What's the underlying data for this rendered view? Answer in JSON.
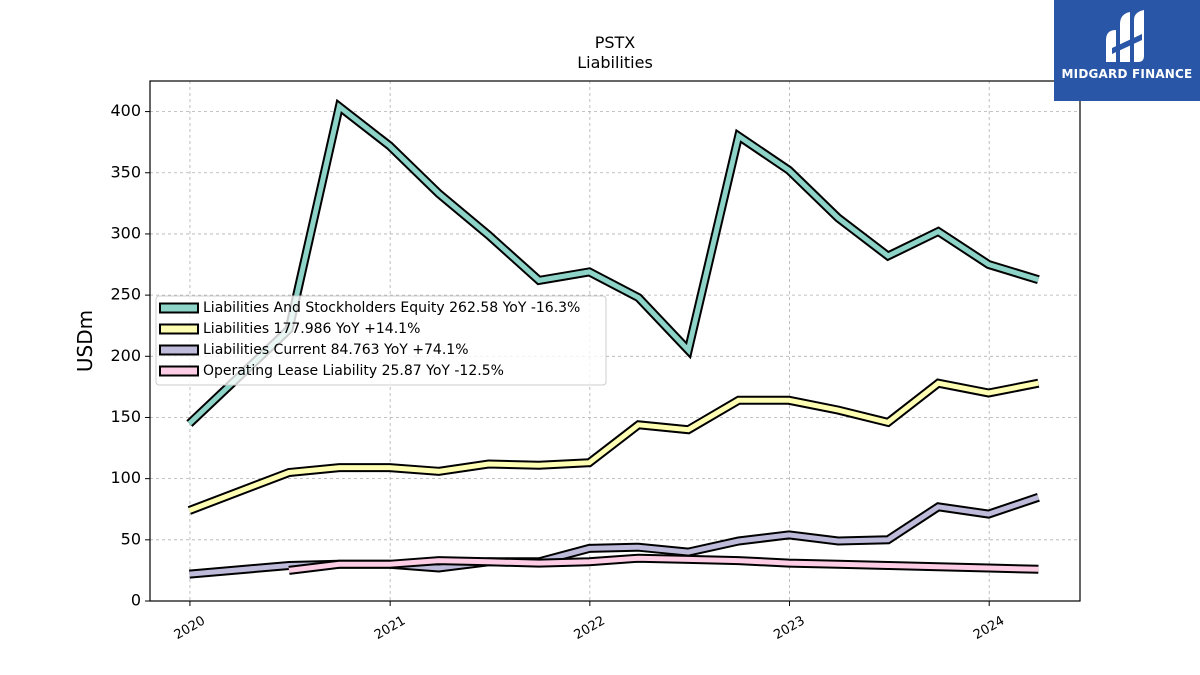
{
  "logo": {
    "text": "MIDGARD FINANCE",
    "background": "#2a56a8"
  },
  "chart_data": {
    "type": "line",
    "title": "PSTX",
    "subtitle": "Liabilities",
    "ylabel": "USDm",
    "xlabel": "",
    "ylim": [
      0,
      425
    ],
    "xlim": [
      "2019-10-20",
      "2024-06-15"
    ],
    "grid": true,
    "legend_position": "center-left",
    "yticks": [
      0,
      50,
      100,
      150,
      200,
      250,
      300,
      350,
      400
    ],
    "xticks": [
      {
        "label": "2020",
        "date": "2020-01-01"
      },
      {
        "label": "2021",
        "date": "2021-01-01"
      },
      {
        "label": "2022",
        "date": "2022-01-01"
      },
      {
        "label": "2023",
        "date": "2023-01-01"
      },
      {
        "label": "2024",
        "date": "2024-01-01"
      }
    ],
    "series": [
      {
        "name": "Liabilities And Stockholders Equity",
        "legend": "Liabilities And Stockholders Equity  262.58 YoY -16.3%",
        "color": "#8dd3c7",
        "points": [
          [
            "2019-12-31",
            145
          ],
          [
            "2020-06-30",
            222
          ],
          [
            "2020-09-30",
            404
          ],
          [
            "2020-12-31",
            372
          ],
          [
            "2021-03-31",
            333
          ],
          [
            "2021-06-30",
            299
          ],
          [
            "2021-09-30",
            262
          ],
          [
            "2021-12-31",
            269
          ],
          [
            "2022-03-31",
            248
          ],
          [
            "2022-06-30",
            205
          ],
          [
            "2022-09-30",
            380
          ],
          [
            "2022-12-31",
            352
          ],
          [
            "2023-03-31",
            313
          ],
          [
            "2023-06-30",
            282
          ],
          [
            "2023-09-30",
            302
          ],
          [
            "2023-12-31",
            275
          ],
          [
            "2024-03-31",
            262.58
          ]
        ]
      },
      {
        "name": "Liabilities",
        "legend": "Liabilities  177.986 YoY +14.1%",
        "color": "#ffffb3",
        "points": [
          [
            "2019-12-31",
            74
          ],
          [
            "2020-06-30",
            105
          ],
          [
            "2020-09-30",
            109
          ],
          [
            "2020-12-31",
            109
          ],
          [
            "2021-03-31",
            106
          ],
          [
            "2021-06-30",
            112
          ],
          [
            "2021-09-30",
            111
          ],
          [
            "2021-12-31",
            113
          ],
          [
            "2022-03-31",
            144
          ],
          [
            "2022-06-30",
            140
          ],
          [
            "2022-09-30",
            164
          ],
          [
            "2022-12-31",
            164
          ],
          [
            "2023-03-31",
            156
          ],
          [
            "2023-06-30",
            146
          ],
          [
            "2023-09-30",
            178
          ],
          [
            "2023-12-31",
            170
          ],
          [
            "2024-03-31",
            177.986
          ]
        ]
      },
      {
        "name": "Liabilities Current",
        "legend": "Liabilities Current  84.763 YoY +74.1%",
        "color": "#bebada",
        "points": [
          [
            "2019-12-31",
            22
          ],
          [
            "2020-06-30",
            29
          ],
          [
            "2020-09-30",
            30
          ],
          [
            "2020-12-31",
            30
          ],
          [
            "2021-03-31",
            27
          ],
          [
            "2021-06-30",
            32
          ],
          [
            "2021-09-30",
            32
          ],
          [
            "2021-12-31",
            43
          ],
          [
            "2022-03-31",
            44
          ],
          [
            "2022-06-30",
            40
          ],
          [
            "2022-09-30",
            49
          ],
          [
            "2022-12-31",
            54
          ],
          [
            "2023-03-31",
            49
          ],
          [
            "2023-06-30",
            50
          ],
          [
            "2023-09-30",
            77
          ],
          [
            "2023-12-31",
            71
          ],
          [
            "2024-03-31",
            84.763
          ]
        ]
      },
      {
        "name": "Operating Lease Liability",
        "legend": "Operating Lease Liability  25.87 YoY -12.5%",
        "color": "#fccde5",
        "points": [
          [
            "2020-06-30",
            25
          ],
          [
            "2020-09-30",
            30
          ],
          [
            "2020-12-31",
            30
          ],
          [
            "2021-03-31",
            33
          ],
          [
            "2021-06-30",
            32
          ],
          [
            "2021-09-30",
            31
          ],
          [
            "2021-12-31",
            32
          ],
          [
            "2022-03-31",
            35
          ],
          [
            "2022-06-30",
            34
          ],
          [
            "2022-09-30",
            33
          ],
          [
            "2022-12-31",
            31
          ],
          [
            "2023-03-31",
            30
          ],
          [
            "2023-06-30",
            29
          ],
          [
            "2023-09-30",
            28
          ],
          [
            "2023-12-31",
            27
          ],
          [
            "2024-03-31",
            25.87
          ]
        ]
      }
    ]
  }
}
